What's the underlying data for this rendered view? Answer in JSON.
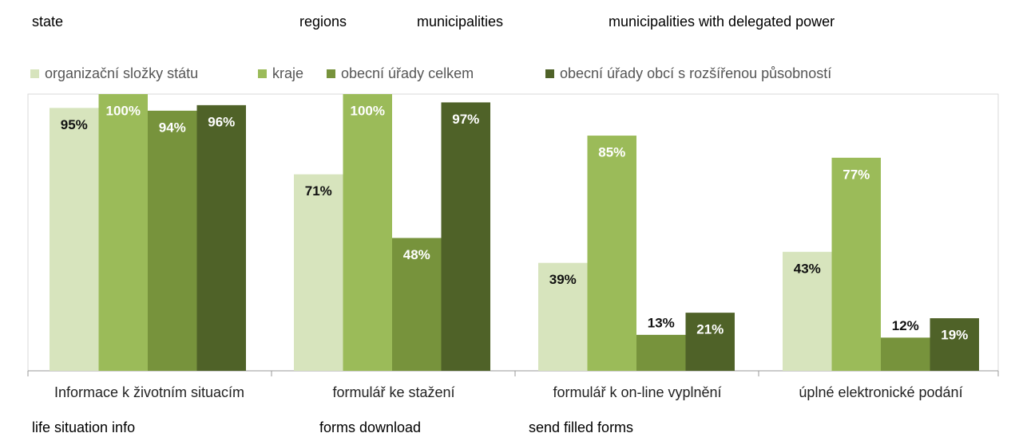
{
  "chart_data": {
    "type": "bar",
    "annotations_top": [
      "state",
      "regions",
      "municipalities",
      "municipalities with delegated power"
    ],
    "annotations_bottom": [
      "life situation info",
      "forms download",
      "send filled forms"
    ],
    "categories": [
      "Informace k životním situacím",
      "formulář ke stažení",
      "formulář k on-line vyplnění",
      "úplné elektronické podání"
    ],
    "series": [
      {
        "name": "organizační složky státu",
        "color": "#d7e4bd",
        "values": [
          95,
          71,
          39,
          43
        ],
        "value_labels": [
          "95%",
          "71%",
          "39%",
          "43%"
        ]
      },
      {
        "name": "kraje",
        "color": "#9bbb59",
        "values": [
          100,
          100,
          85,
          77
        ],
        "value_labels": [
          "100%",
          "100%",
          "85%",
          "77%"
        ]
      },
      {
        "name": "obecní úřady celkem",
        "color": "#77933c",
        "values": [
          94,
          48,
          13,
          12
        ],
        "value_labels": [
          "94%",
          "48%",
          "13%",
          "12%"
        ]
      },
      {
        "name": "obecní úřady obcí s rozšířenou působností",
        "color": "#4f6228",
        "values": [
          96,
          97,
          21,
          19
        ],
        "value_labels": [
          "96%",
          "97%",
          "21%",
          "19%"
        ]
      }
    ],
    "ylim": [
      0,
      100
    ],
    "legend": "top"
  }
}
